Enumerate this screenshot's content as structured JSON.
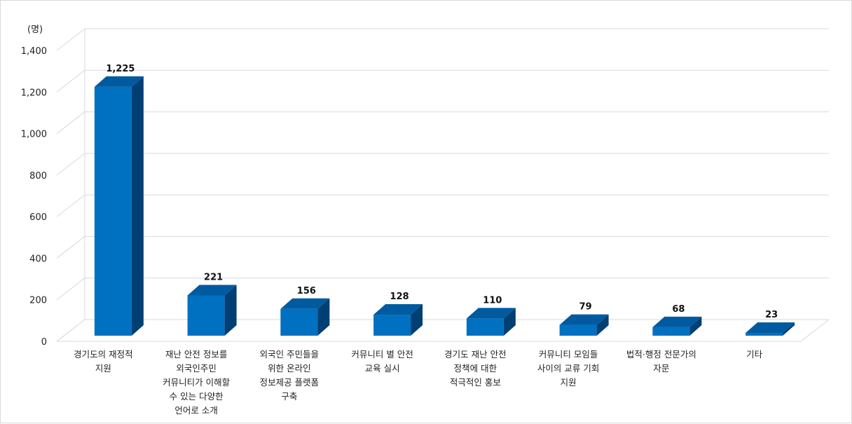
{
  "chart_data": {
    "type": "bar",
    "unit_label": "(명)",
    "categories": [
      "경기도의 재정적\n지원",
      "재난 안전 정보를\n외국인주민\n커뮤니티가 이해할\n수 있는 다양한\n언어로 소개",
      "외국인 주민들을\n위한 온라인\n정보제공 플랫폼\n구축",
      "커뮤니티 별 안전\n교육 실시",
      "경기도 재난 안전\n정책에 대한\n적극적인 홍보",
      "커뮤니티 모임들\n사이의 교류 기회\n지원",
      "법적·행정 전문가의\n자문",
      "기타"
    ],
    "values": [
      1225,
      221,
      156,
      128,
      110,
      79,
      68,
      23
    ],
    "value_labels": [
      "1,225",
      "221",
      "156",
      "128",
      "110",
      "79",
      "68",
      "23"
    ],
    "ylim": [
      0,
      1400
    ],
    "yticks": [
      "0",
      "200",
      "400",
      "600",
      "800",
      "1,000",
      "1,200",
      "1,400"
    ],
    "grid": true,
    "colors": {
      "front": "#0070c0",
      "side": "#003f74",
      "top": "#005aa0",
      "grid": "#d9d9d9"
    }
  }
}
